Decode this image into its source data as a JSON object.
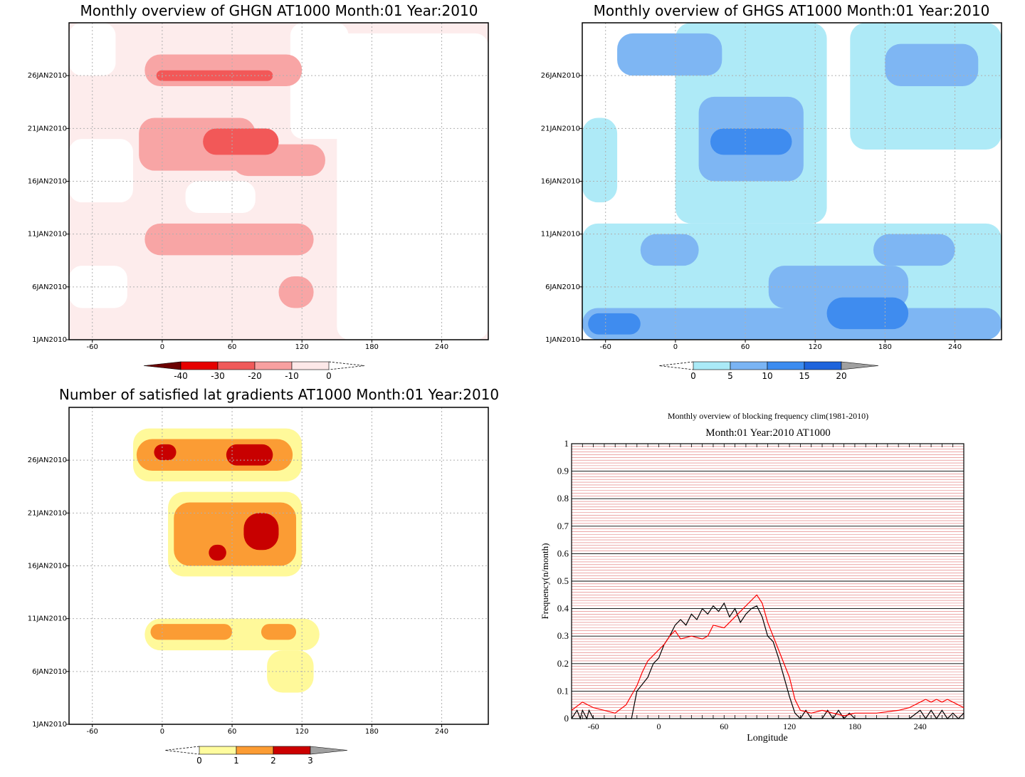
{
  "chart_data": [
    {
      "type": "heatmap",
      "title": "Monthly overview of GHGN AT1000 Month:01 Year:2010",
      "x_ticks": [
        "-60",
        "0",
        "60",
        "120",
        "180",
        "240"
      ],
      "xlim": [
        -80,
        280
      ],
      "y_ticks": [
        "1JAN2010",
        "6JAN2010",
        "11JAN2010",
        "16JAN2010",
        "21JAN2010",
        "26JAN2010"
      ],
      "ylim": [
        1,
        31
      ],
      "grid": "dotted",
      "colorbar": {
        "ticks": [
          "-40",
          "-30",
          "-20",
          "-10",
          "0"
        ],
        "colors": [
          "#6b0000",
          "#e60000",
          "#f05a5a",
          "#f8a0a0",
          "#fde8e8"
        ]
      },
      "colors": {
        "c0": "#fdecec",
        "c1": "#f8a5a5",
        "c2": "#f25858"
      },
      "regions": [
        {
          "level": 1,
          "lon": [
            -20,
            80
          ],
          "day": [
            17,
            22
          ]
        },
        {
          "level": 1,
          "lon": [
            60,
            140
          ],
          "day": [
            16.5,
            19.5
          ]
        },
        {
          "level": 1,
          "lon": [
            -15,
            120
          ],
          "day": [
            25,
            28
          ]
        },
        {
          "level": 1,
          "lon": [
            -15,
            130
          ],
          "day": [
            9,
            12
          ]
        },
        {
          "level": 1,
          "lon": [
            100,
            130
          ],
          "day": [
            4,
            7
          ]
        },
        {
          "level": 2,
          "lon": [
            35,
            100
          ],
          "day": [
            18.5,
            21
          ]
        },
        {
          "level": 2,
          "lon": [
            -5,
            95
          ],
          "day": [
            25.5,
            26.5
          ]
        }
      ]
    },
    {
      "type": "heatmap",
      "title": "Monthly overview of GHGS AT1000 Month:01 Year:2010",
      "x_ticks": [
        "-60",
        "0",
        "60",
        "120",
        "180",
        "240"
      ],
      "xlim": [
        -80,
        280
      ],
      "y_ticks": [
        "1JAN2010",
        "6JAN2010",
        "11JAN2010",
        "16JAN2010",
        "21JAN2010",
        "26JAN2010"
      ],
      "ylim": [
        1,
        31
      ],
      "grid": "dotted",
      "colorbar": {
        "ticks": [
          "0",
          "5",
          "10",
          "15",
          "20"
        ],
        "colors": [
          "#aaeaf7",
          "#7ab4f4",
          "#3c8cf0",
          "#1e64dc",
          "#a0a0a0"
        ]
      },
      "colors": {
        "c1": "#aeeaf7",
        "c2": "#7eb6f3",
        "c3": "#3f8cef"
      },
      "regions": [
        {
          "level": 1,
          "lon": [
            -80,
            280
          ],
          "day": [
            1,
            12
          ]
        },
        {
          "level": 1,
          "lon": [
            0,
            130
          ],
          "day": [
            12,
            31
          ]
        },
        {
          "level": 1,
          "lon": [
            150,
            280
          ],
          "day": [
            19,
            31
          ]
        },
        {
          "level": 1,
          "lon": [
            -80,
            -50
          ],
          "day": [
            14,
            22
          ]
        },
        {
          "level": 2,
          "lon": [
            -80,
            280
          ],
          "day": [
            1,
            4
          ]
        },
        {
          "level": 2,
          "lon": [
            20,
            110
          ],
          "day": [
            16,
            24
          ]
        },
        {
          "level": 2,
          "lon": [
            -50,
            40
          ],
          "day": [
            26,
            30
          ]
        },
        {
          "level": 2,
          "lon": [
            80,
            200
          ],
          "day": [
            4,
            8
          ]
        },
        {
          "level": 2,
          "lon": [
            170,
            240
          ],
          "day": [
            8,
            11
          ]
        },
        {
          "level": 2,
          "lon": [
            -30,
            20
          ],
          "day": [
            8,
            11
          ]
        },
        {
          "level": 2,
          "lon": [
            180,
            260
          ],
          "day": [
            25,
            29
          ]
        },
        {
          "level": 3,
          "lon": [
            -75,
            -30
          ],
          "day": [
            1.5,
            3.5
          ]
        },
        {
          "level": 3,
          "lon": [
            30,
            100
          ],
          "day": [
            18.5,
            21
          ]
        },
        {
          "level": 3,
          "lon": [
            130,
            200
          ],
          "day": [
            2,
            5
          ]
        }
      ]
    },
    {
      "type": "heatmap",
      "title": "Number of satisfied lat gradients AT1000 Month:01 Year:2010",
      "x_ticks": [
        "-60",
        "0",
        "60",
        "120",
        "180",
        "240"
      ],
      "xlim": [
        -80,
        280
      ],
      "y_ticks": [
        "1JAN2010",
        "6JAN2010",
        "11JAN2010",
        "16JAN2010",
        "21JAN2010",
        "26JAN2010"
      ],
      "ylim": [
        1,
        31
      ],
      "grid": "dotted",
      "colorbar": {
        "ticks": [
          "0",
          "1",
          "2",
          "3"
        ],
        "colors": [
          "#fffc9e",
          "#fc9c33",
          "#cc0000",
          "#a0a0a0"
        ]
      },
      "colors": {
        "c1": "#fff99a",
        "c2": "#fb9c34",
        "c3": "#c80000"
      },
      "regions": [
        {
          "level": 1,
          "lon": [
            -25,
            120
          ],
          "day": [
            24,
            29
          ]
        },
        {
          "level": 1,
          "lon": [
            5,
            120
          ],
          "day": [
            15,
            23
          ]
        },
        {
          "level": 1,
          "lon": [
            -15,
            75
          ],
          "day": [
            8,
            11
          ]
        },
        {
          "level": 1,
          "lon": [
            50,
            135
          ],
          "day": [
            8,
            11
          ]
        },
        {
          "level": 1,
          "lon": [
            90,
            130
          ],
          "day": [
            4,
            8
          ]
        },
        {
          "level": 2,
          "lon": [
            -22,
            112
          ],
          "day": [
            25,
            28
          ]
        },
        {
          "level": 2,
          "lon": [
            10,
            115
          ],
          "day": [
            16,
            22
          ]
        },
        {
          "level": 2,
          "lon": [
            -10,
            60
          ],
          "day": [
            9,
            10.5
          ]
        },
        {
          "level": 2,
          "lon": [
            85,
            115
          ],
          "day": [
            9,
            10.5
          ]
        },
        {
          "level": 3,
          "lon": [
            -7,
            12
          ],
          "day": [
            26,
            27.5
          ]
        },
        {
          "level": 3,
          "lon": [
            55,
            95
          ],
          "day": [
            25.5,
            27.5
          ]
        },
        {
          "level": 3,
          "lon": [
            70,
            100
          ],
          "day": [
            17.5,
            21
          ]
        },
        {
          "level": 3,
          "lon": [
            40,
            55
          ],
          "day": [
            16.5,
            18
          ]
        }
      ]
    },
    {
      "type": "line",
      "title": "Monthly overview of blocking frequency clim(1981-2010)",
      "subtitle": "Month:01 Year:2010  AT1000",
      "xlabel": "Longitude",
      "ylabel": "Frequency(n/month)",
      "x_ticks": [
        "-60",
        "0",
        "60",
        "120",
        "180",
        "240"
      ],
      "y_ticks": [
        "0",
        "0.1",
        "0.2",
        "0.3",
        "0.4",
        "0.5",
        "0.6",
        "0.7",
        "0.8",
        "0.9",
        "1"
      ],
      "xlim": [
        -80,
        280
      ],
      "ylim": [
        0,
        1
      ],
      "grid": "horizontal",
      "series": [
        {
          "color": "#000000",
          "x": [
            -80,
            -75,
            -72,
            -70,
            -66,
            -64,
            -60,
            -40,
            -25,
            -20,
            -10,
            -5,
            0,
            5,
            10,
            15,
            20,
            25,
            30,
            35,
            40,
            45,
            50,
            55,
            60,
            65,
            70,
            75,
            80,
            85,
            90,
            95,
            100,
            105,
            110,
            115,
            120,
            125,
            130,
            135,
            140,
            150,
            155,
            160,
            165,
            170,
            175,
            180,
            200,
            230,
            240,
            245,
            250,
            255,
            260,
            265,
            270,
            275,
            280
          ],
          "y": [
            0,
            0.03,
            0,
            0.03,
            0,
            0.03,
            0,
            0,
            0,
            0.1,
            0.15,
            0.2,
            0.22,
            0.27,
            0.3,
            0.34,
            0.36,
            0.34,
            0.38,
            0.36,
            0.4,
            0.38,
            0.41,
            0.39,
            0.42,
            0.37,
            0.4,
            0.35,
            0.38,
            0.4,
            0.41,
            0.37,
            0.3,
            0.28,
            0.22,
            0.15,
            0.08,
            0.02,
            0,
            0.03,
            0,
            0,
            0.03,
            0,
            0.03,
            0,
            0.02,
            0,
            0,
            0,
            0.03,
            0,
            0.03,
            0,
            0.03,
            0,
            0.02,
            0,
            0.02
          ]
        },
        {
          "color": "#ff0000",
          "x": [
            -80,
            -70,
            -60,
            -50,
            -40,
            -30,
            -20,
            -15,
            -10,
            -5,
            0,
            5,
            10,
            15,
            20,
            30,
            40,
            45,
            50,
            60,
            70,
            80,
            85,
            90,
            95,
            100,
            110,
            120,
            125,
            130,
            140,
            150,
            160,
            170,
            180,
            200,
            220,
            230,
            240,
            245,
            250,
            255,
            260,
            265,
            270,
            280
          ],
          "y": [
            0.03,
            0.06,
            0.04,
            0.03,
            0.02,
            0.05,
            0.12,
            0.17,
            0.21,
            0.23,
            0.25,
            0.27,
            0.3,
            0.32,
            0.29,
            0.3,
            0.29,
            0.3,
            0.34,
            0.33,
            0.37,
            0.41,
            0.43,
            0.45,
            0.42,
            0.35,
            0.25,
            0.15,
            0.07,
            0.03,
            0.02,
            0.03,
            0.02,
            0.01,
            0.02,
            0.02,
            0.03,
            0.04,
            0.06,
            0.07,
            0.06,
            0.07,
            0.06,
            0.07,
            0.06,
            0.04
          ]
        }
      ]
    }
  ]
}
